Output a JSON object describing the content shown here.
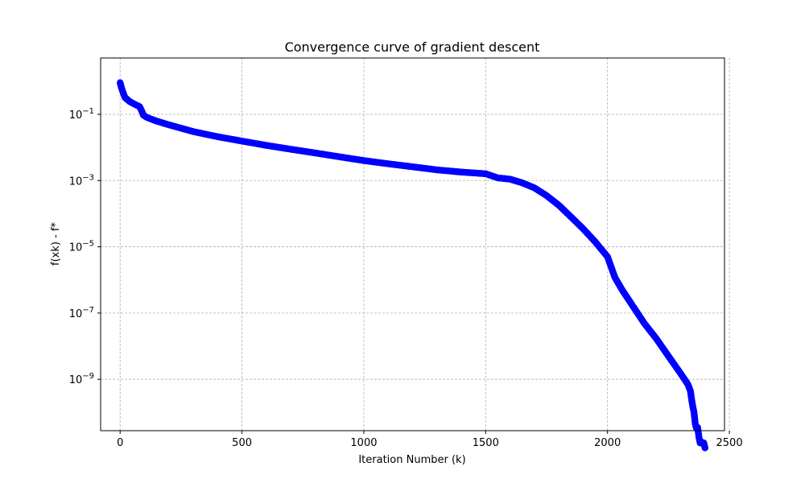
{
  "chart_data": {
    "type": "scatter",
    "title": "Convergence curve of gradient descent",
    "xlabel": "Iteration Number (k)",
    "ylabel": "f(xk) - f*",
    "xlim": [
      -80,
      2480
    ],
    "ylim_log10": [
      -10.55,
      0.7
    ],
    "yscale": "log",
    "grid": true,
    "marker_color": "#0000ff",
    "x_ticks": [
      {
        "value": 0,
        "label": "0"
      },
      {
        "value": 500,
        "label": "500"
      },
      {
        "value": 1000,
        "label": "1000"
      },
      {
        "value": 1500,
        "label": "1500"
      },
      {
        "value": 2000,
        "label": "2000"
      },
      {
        "value": 2500,
        "label": "2500"
      }
    ],
    "y_ticks": [
      {
        "exp": -1,
        "base": "10",
        "power": "−1"
      },
      {
        "exp": -3,
        "base": "10",
        "power": "−3"
      },
      {
        "exp": -5,
        "base": "10",
        "power": "−5"
      },
      {
        "exp": -7,
        "base": "10",
        "power": "−7"
      },
      {
        "exp": -9,
        "base": "10",
        "power": "−9"
      }
    ],
    "series": [
      {
        "x": [
          0,
          5,
          10,
          20,
          40,
          60,
          80,
          90,
          95,
          110,
          150,
          200,
          300,
          400,
          500,
          600,
          700,
          800,
          900,
          1000,
          1100,
          1200,
          1300,
          1400,
          1500,
          1550,
          1600,
          1650,
          1700,
          1750,
          1800,
          1850,
          1900,
          1950,
          2000,
          2030,
          2060,
          2100,
          2150,
          2200,
          2250,
          2300,
          2330,
          2340,
          2345,
          2350,
          2355,
          2360,
          2365,
          2370,
          2375,
          2380,
          2385,
          2390,
          2395,
          2400
        ],
        "y": [
          0.9,
          0.65,
          0.5,
          0.32,
          0.24,
          0.2,
          0.17,
          0.12,
          0.095,
          0.08,
          0.062,
          0.048,
          0.03,
          0.021,
          0.0155,
          0.0115,
          0.0088,
          0.0068,
          0.0052,
          0.004,
          0.0032,
          0.0026,
          0.0021,
          0.0018,
          0.0016,
          0.0012,
          0.0011,
          0.00085,
          0.0006,
          0.00035,
          0.00018,
          8e-05,
          3.5e-05,
          1.4e-05,
          5e-06,
          1.2e-06,
          5e-07,
          1.8e-07,
          5e-08,
          1.7e-08,
          5e-09,
          1.5e-09,
          7e-10,
          4.5e-10,
          2.5e-10,
          1.5e-10,
          1e-10,
          4.5e-11,
          3.3e-11,
          3.5e-11,
          1.8e-11,
          1.2e-11,
          1.3e-11,
          1.2e-11,
          1.2e-11,
          8.5e-12
        ]
      }
    ]
  }
}
